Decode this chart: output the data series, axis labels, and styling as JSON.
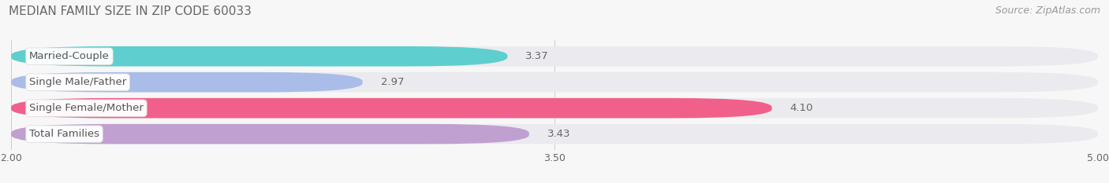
{
  "title": "MEDIAN FAMILY SIZE IN ZIP CODE 60033",
  "source": "Source: ZipAtlas.com",
  "categories": [
    "Married-Couple",
    "Single Male/Father",
    "Single Female/Mother",
    "Total Families"
  ],
  "values": [
    3.37,
    2.97,
    4.1,
    3.43
  ],
  "bar_colors": [
    "#5ecfce",
    "#aabce8",
    "#f0608a",
    "#c0a0d0"
  ],
  "bar_bg_color": "#ebebef",
  "xlim": [
    2.0,
    5.0
  ],
  "xticks": [
    2.0,
    3.5,
    5.0
  ],
  "xtick_labels": [
    "2.00",
    "3.50",
    "5.00"
  ],
  "label_fontsize": 9.5,
  "title_fontsize": 11,
  "source_fontsize": 9,
  "value_color_outside": "#666666",
  "value_color_inside": "#ffffff",
  "background_color": "#f7f7f7",
  "label_box_color": "#ffffff",
  "label_text_color": "#555555"
}
